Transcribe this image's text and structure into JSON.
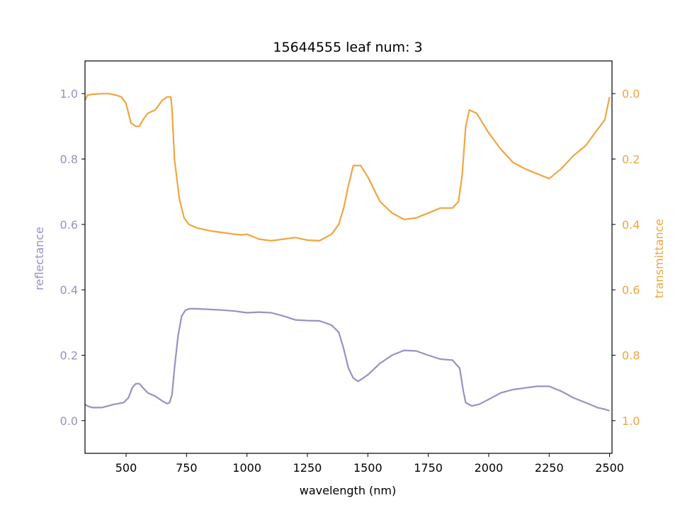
{
  "colors": {
    "reflectance": "#9891c4",
    "transmittance": "#f0a541",
    "axis": "#000000"
  },
  "chart_data": {
    "type": "line",
    "title": "15644555 leaf num: 3",
    "xlabel": "wavelength (nm)",
    "ylabel_left": "reflectance",
    "ylabel_right": "transmittance",
    "xlim": [
      330,
      2510
    ],
    "ylim_left": [
      -0.1,
      1.1
    ],
    "ylim_right": [
      1.1,
      -0.1
    ],
    "right_axis_inverted": true,
    "x_ticks": [
      500,
      750,
      1000,
      1250,
      1500,
      1750,
      2000,
      2250,
      2500
    ],
    "y_ticks_left": [
      "0.0",
      "0.2",
      "0.4",
      "0.6",
      "0.8",
      "1.0"
    ],
    "y_ticks_right": [
      "0.0",
      "0.2",
      "0.4",
      "0.6",
      "0.8",
      "1.0"
    ],
    "grid": false,
    "series": [
      {
        "name": "reflectance",
        "axis": "left",
        "x": [
          330,
          340,
          360,
          400,
          450,
          490,
          510,
          525,
          540,
          555,
          570,
          590,
          620,
          650,
          670,
          680,
          690,
          700,
          715,
          730,
          745,
          760,
          790,
          850,
          900,
          950,
          980,
          1000,
          1050,
          1100,
          1150,
          1200,
          1250,
          1300,
          1350,
          1380,
          1400,
          1420,
          1440,
          1460,
          1500,
          1550,
          1600,
          1650,
          1700,
          1750,
          1800,
          1850,
          1880,
          1895,
          1905,
          1930,
          1960,
          2000,
          2050,
          2100,
          2150,
          2200,
          2250,
          2300,
          2350,
          2400,
          2450,
          2480,
          2500
        ],
        "y": [
          0.05,
          0.045,
          0.04,
          0.04,
          0.05,
          0.055,
          0.07,
          0.1,
          0.113,
          0.113,
          0.1,
          0.085,
          0.075,
          0.06,
          0.052,
          0.055,
          0.08,
          0.16,
          0.26,
          0.32,
          0.337,
          0.342,
          0.342,
          0.34,
          0.338,
          0.335,
          0.332,
          0.33,
          0.332,
          0.33,
          0.32,
          0.308,
          0.306,
          0.305,
          0.292,
          0.27,
          0.22,
          0.16,
          0.13,
          0.12,
          0.14,
          0.175,
          0.2,
          0.215,
          0.213,
          0.2,
          0.188,
          0.185,
          0.16,
          0.09,
          0.055,
          0.045,
          0.05,
          0.065,
          0.085,
          0.095,
          0.1,
          0.105,
          0.105,
          0.09,
          0.07,
          0.055,
          0.04,
          0.035,
          0.03
        ]
      },
      {
        "name": "transmittance",
        "axis": "right",
        "x": [
          330,
          340,
          360,
          400,
          430,
          460,
          480,
          500,
          520,
          540,
          555,
          570,
          590,
          620,
          650,
          670,
          685,
          690,
          700,
          720,
          740,
          760,
          790,
          850,
          900,
          950,
          980,
          1000,
          1050,
          1100,
          1150,
          1200,
          1250,
          1300,
          1350,
          1380,
          1400,
          1420,
          1440,
          1470,
          1500,
          1550,
          1600,
          1650,
          1700,
          1750,
          1800,
          1850,
          1875,
          1890,
          1905,
          1920,
          1950,
          2000,
          2050,
          2100,
          2150,
          2200,
          2250,
          2300,
          2350,
          2400,
          2450,
          2480,
          2500
        ],
        "y": [
          0.02,
          0.005,
          0.002,
          0.0,
          0.0,
          0.005,
          0.01,
          0.03,
          0.09,
          0.1,
          0.1,
          0.08,
          0.06,
          0.05,
          0.02,
          0.01,
          0.01,
          0.05,
          0.2,
          0.32,
          0.38,
          0.4,
          0.41,
          0.42,
          0.425,
          0.43,
          0.432,
          0.43,
          0.445,
          0.45,
          0.445,
          0.44,
          0.448,
          0.45,
          0.43,
          0.4,
          0.35,
          0.28,
          0.22,
          0.22,
          0.255,
          0.33,
          0.365,
          0.385,
          0.38,
          0.365,
          0.35,
          0.35,
          0.33,
          0.25,
          0.1,
          0.05,
          0.06,
          0.12,
          0.17,
          0.21,
          0.23,
          0.245,
          0.26,
          0.23,
          0.19,
          0.16,
          0.11,
          0.08,
          0.01
        ]
      }
    ]
  }
}
